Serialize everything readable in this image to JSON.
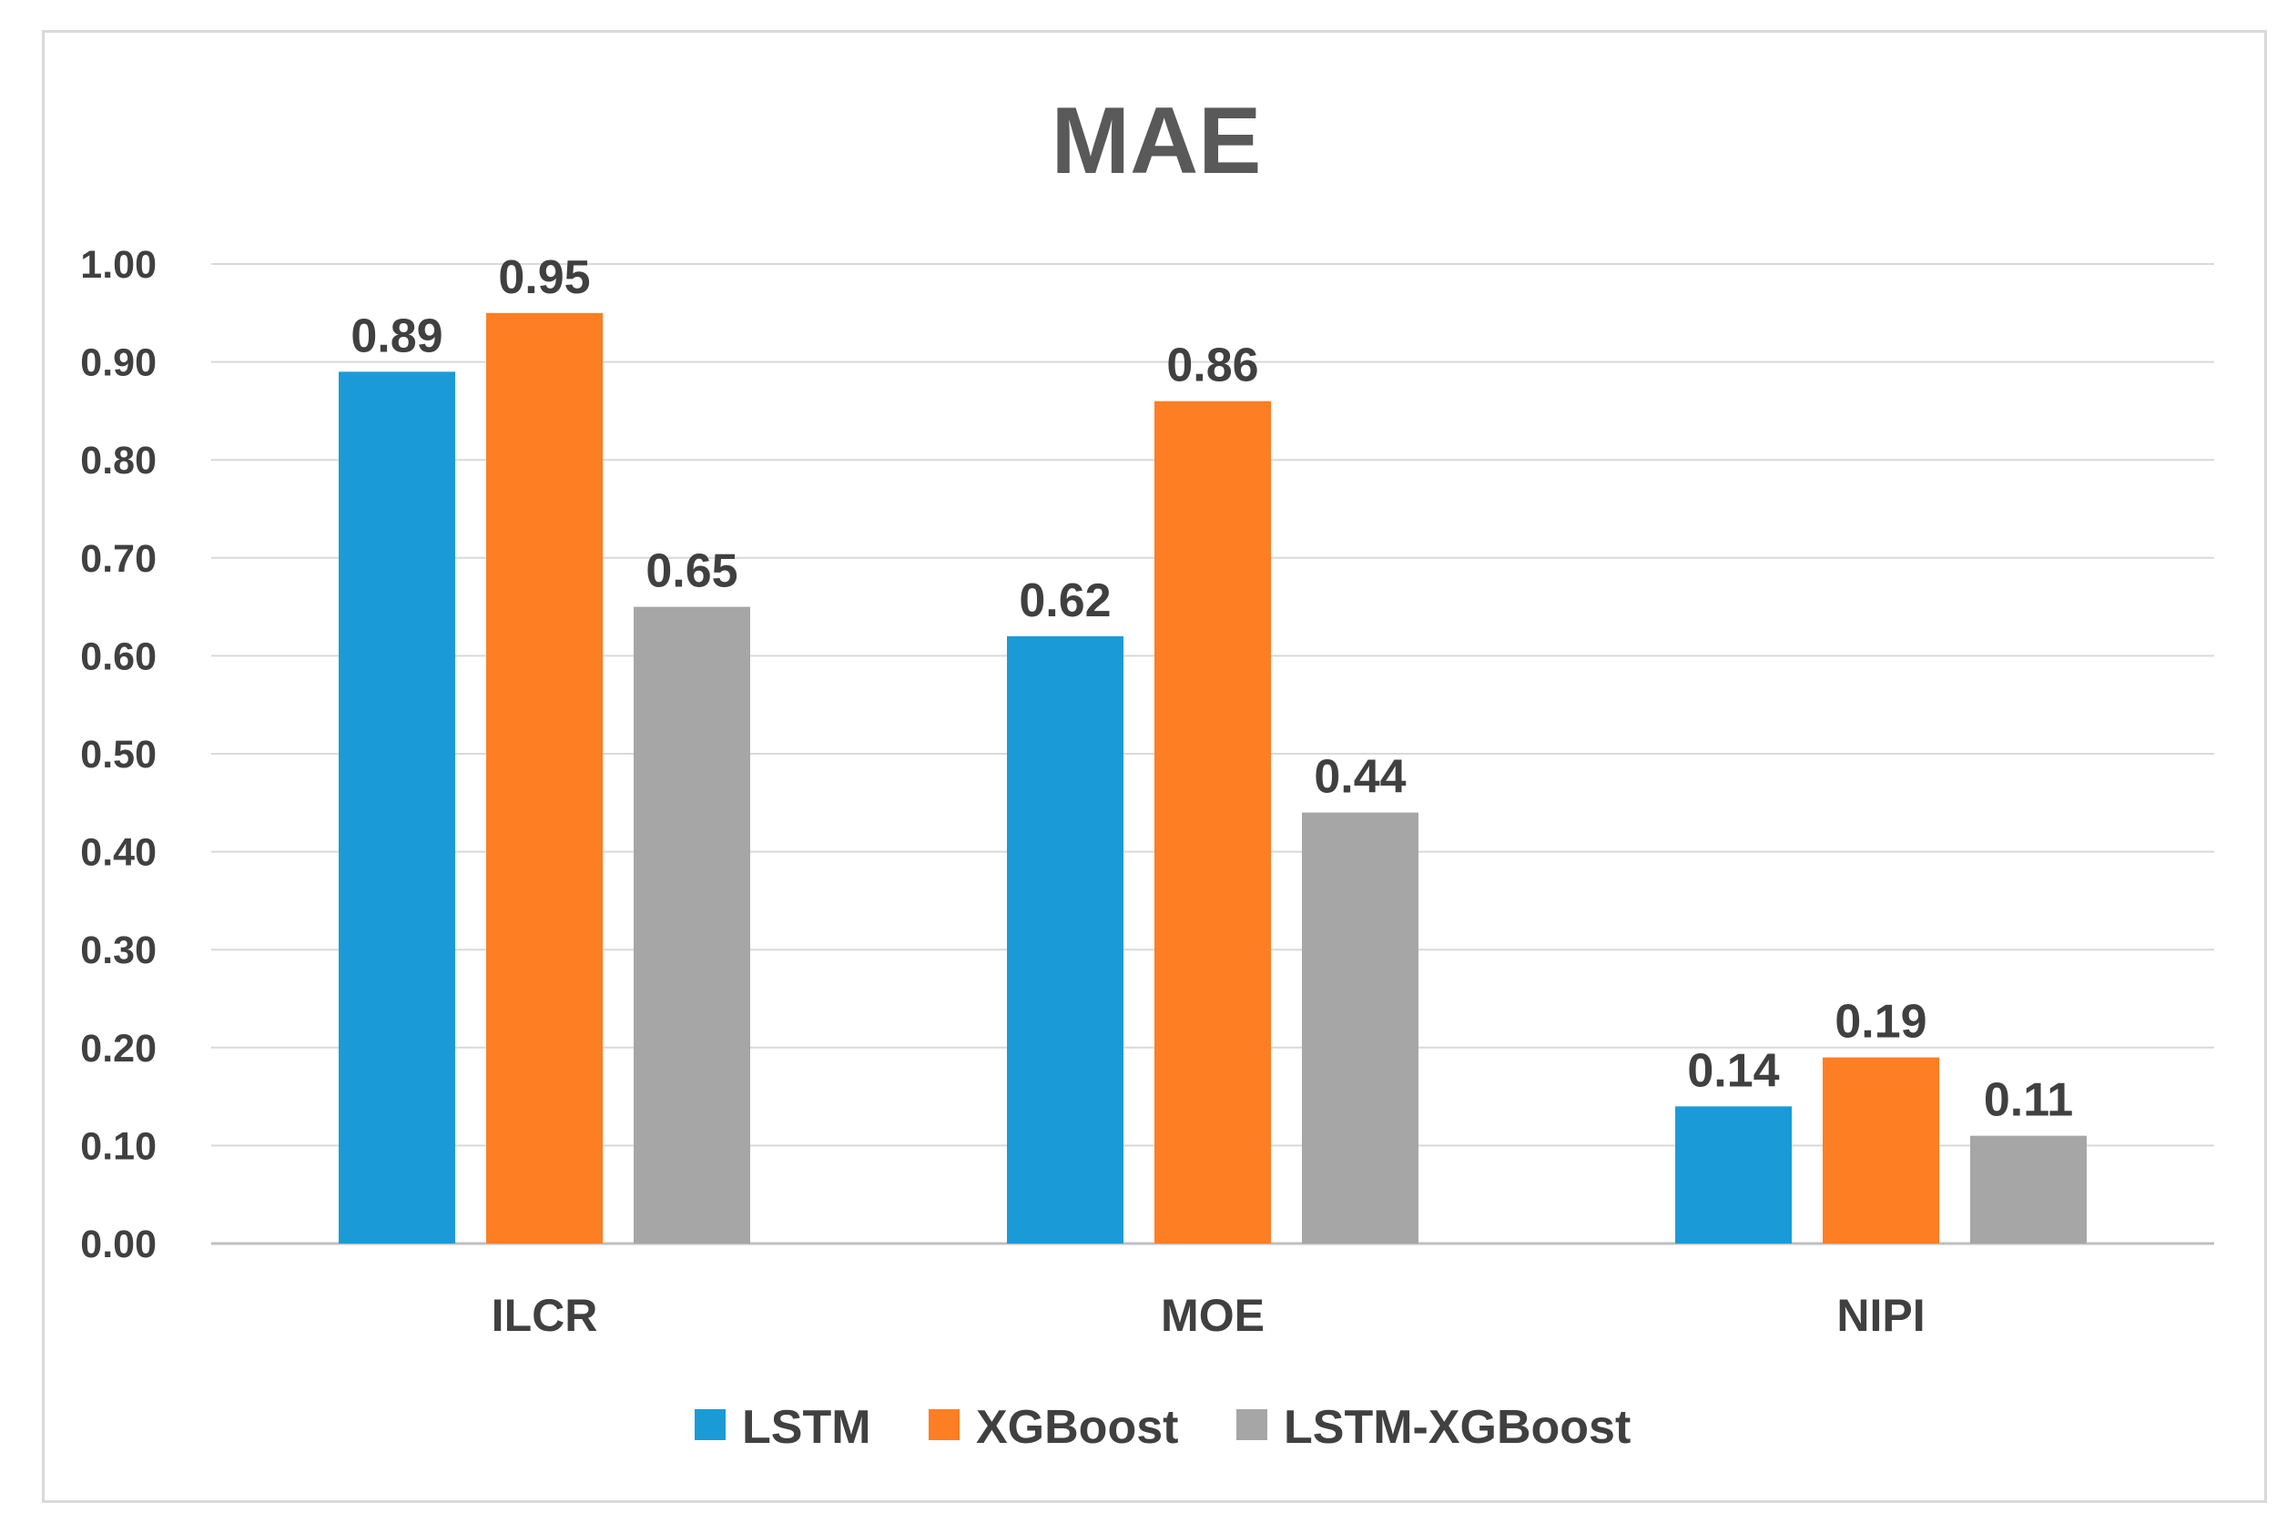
{
  "chart_data": {
    "type": "bar",
    "title": "MAE",
    "categories": [
      "ILCR",
      "MOE",
      "NIPI"
    ],
    "series": [
      {
        "name": "LSTM",
        "color": "#1a9bd7",
        "values": [
          0.89,
          0.62,
          0.14
        ]
      },
      {
        "name": "XGBoost",
        "color": "#fd7e23",
        "values": [
          0.95,
          0.86,
          0.19
        ]
      },
      {
        "name": "LSTM-XGBoost",
        "color": "#a6a6a6",
        "values": [
          0.65,
          0.44,
          0.11
        ]
      }
    ],
    "data_labels": [
      [
        "0.89",
        "0.62",
        "0.14"
      ],
      [
        "0.95",
        "0.86",
        "0.19"
      ],
      [
        "0.65",
        "0.44",
        "0.11"
      ]
    ],
    "ylim": [
      0,
      1.0
    ],
    "yticks": [
      "0.00",
      "0.10",
      "0.20",
      "0.30",
      "0.40",
      "0.50",
      "0.60",
      "0.70",
      "0.80",
      "0.90",
      "1.00"
    ],
    "xlabel": "",
    "ylabel": "",
    "grid": true,
    "legend_position": "bottom"
  }
}
